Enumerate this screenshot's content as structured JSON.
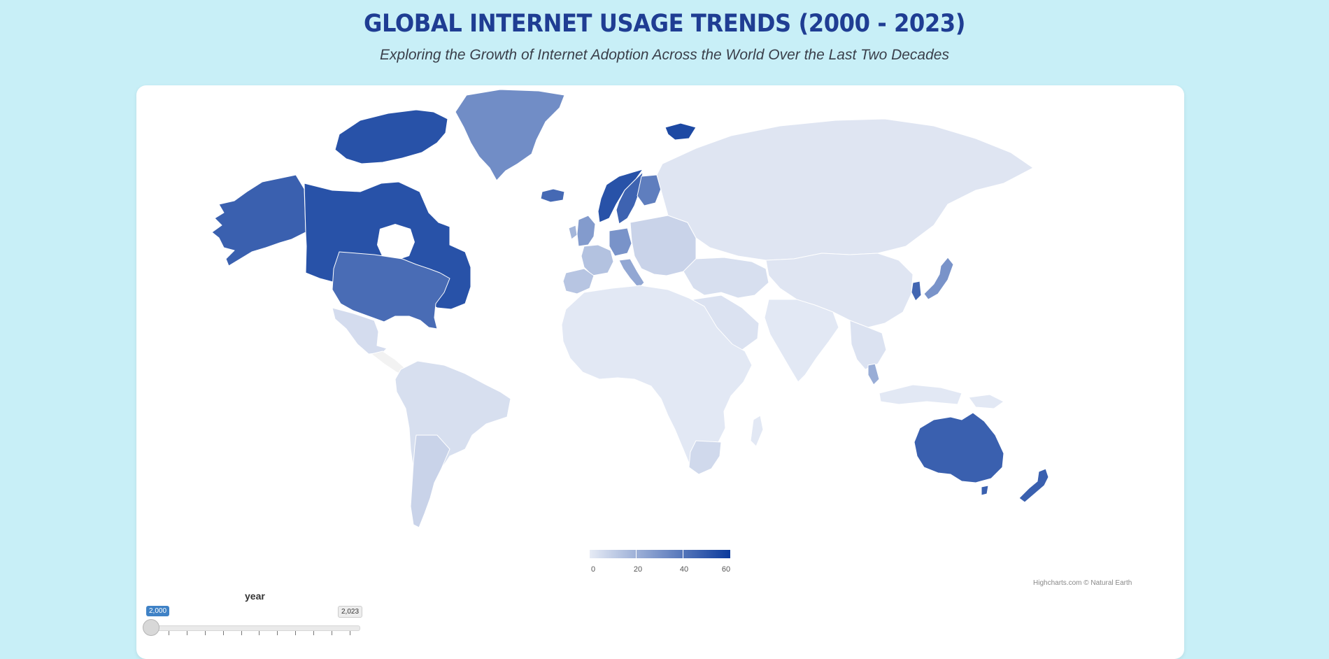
{
  "header": {
    "title": "GLOBAL INTERNET USAGE TRENDS (2000 - 2023)",
    "subtitle": "Exploring the Growth of Internet Adoption Across the World Over the Last Two Decades"
  },
  "map": {
    "credits": "Highcharts.com © Natural Earth",
    "colors": {
      "min": "#e6ebf5",
      "max": "#0b3a9c",
      "null": "#f2f2f2",
      "background": "#c8eff7"
    },
    "legend": {
      "min": 0,
      "max": 60,
      "ticks": [
        "0",
        "20",
        "40",
        "60"
      ]
    },
    "regions": [
      {
        "name": "Alaska",
        "value": 47
      },
      {
        "name": "Canada",
        "value": 52
      },
      {
        "name": "Canadian Arctic Islands",
        "value": 52
      },
      {
        "name": "Greenland",
        "value": 32
      },
      {
        "name": "Iceland",
        "value": 44
      },
      {
        "name": "Svalbard",
        "value": 55
      },
      {
        "name": "United States",
        "value": 43
      },
      {
        "name": "Mexico",
        "value": 5
      },
      {
        "name": "Central America & Caribbean",
        "value": 4
      },
      {
        "name": "South America",
        "value": 4
      },
      {
        "name": "Chile & Argentina",
        "value": 8
      },
      {
        "name": "Norway",
        "value": 52
      },
      {
        "name": "Sweden",
        "value": 46
      },
      {
        "name": "Finland",
        "value": 37
      },
      {
        "name": "United Kingdom",
        "value": 27
      },
      {
        "name": "Ireland",
        "value": 18
      },
      {
        "name": "France",
        "value": 14
      },
      {
        "name": "Iberia",
        "value": 13
      },
      {
        "name": "Germany",
        "value": 30
      },
      {
        "name": "Italy",
        "value": 23
      },
      {
        "name": "Eastern Europe",
        "value": 8
      },
      {
        "name": "Russia & Central Asia",
        "value": 2
      },
      {
        "name": "Africa",
        "value": 1
      },
      {
        "name": "Southern Africa",
        "value": 6
      },
      {
        "name": "Madagascar",
        "value": 1
      },
      {
        "name": "Middle East",
        "value": 4
      },
      {
        "name": "Arabian Peninsula",
        "value": 3
      },
      {
        "name": "South Asia",
        "value": 1
      },
      {
        "name": "China",
        "value": 2
      },
      {
        "name": "Korea",
        "value": 45
      },
      {
        "name": "Japan",
        "value": 30
      },
      {
        "name": "Southeast Asia",
        "value": 3
      },
      {
        "name": "Malaysia",
        "value": 21
      },
      {
        "name": "Indonesia",
        "value": 1
      },
      {
        "name": "Papua New Guinea",
        "value": 1
      },
      {
        "name": "Australia",
        "value": 47
      },
      {
        "name": "Tasmania",
        "value": 47
      },
      {
        "name": "New Zealand",
        "value": 47
      }
    ]
  },
  "slider": {
    "label": "year",
    "min_label": "2,000",
    "max_label": "2,023",
    "value": 2000,
    "min": 2000,
    "max": 2023
  }
}
